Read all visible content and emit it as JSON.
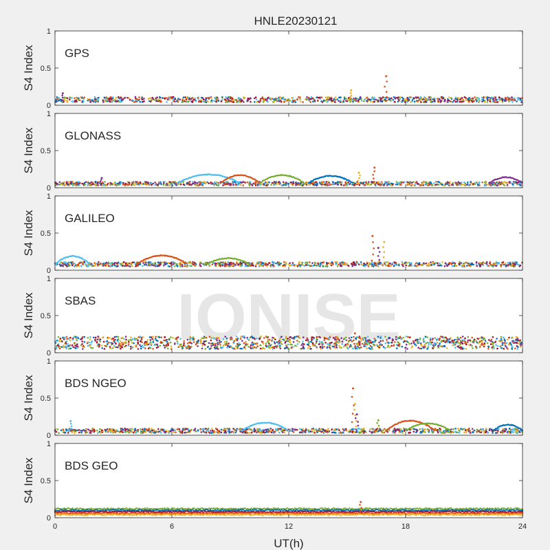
{
  "figure": {
    "title": "HNLE20230121",
    "xlabel": "UT(h)",
    "watermark": "IONISE",
    "background": "#f0f0f0",
    "axes_background": "#ffffff",
    "watermark_color": "#e6e6e6"
  },
  "chart_data": [
    {
      "type": "scatter",
      "name": "GPS",
      "ylabel": "S4 Index",
      "xlim": [
        0,
        24
      ],
      "ylim": [
        0,
        1
      ],
      "xticks": [
        0,
        6,
        12,
        18,
        24
      ],
      "yticks": [
        0,
        0.5,
        1
      ],
      "series_colors": [
        "#0072BD",
        "#D95319",
        "#EDB120",
        "#7E2F8E",
        "#77AC30",
        "#4DBEEE",
        "#A2142F"
      ],
      "baseline_range": [
        0.04,
        0.11
      ],
      "spikes": [
        {
          "x": 17.0,
          "y": 0.39
        },
        {
          "x": 15.2,
          "y": 0.2
        },
        {
          "x": 0.4,
          "y": 0.16
        }
      ],
      "arcs": []
    },
    {
      "type": "scatter",
      "name": "GLONASS",
      "ylabel": "S4 Index",
      "xlim": [
        0,
        24
      ],
      "ylim": [
        0,
        1
      ],
      "xticks": [
        0,
        6,
        12,
        18,
        24
      ],
      "yticks": [
        0,
        0.5,
        1
      ],
      "series_colors": [
        "#0072BD",
        "#D95319",
        "#EDB120",
        "#7E2F8E",
        "#77AC30",
        "#4DBEEE",
        "#A2142F"
      ],
      "baseline_range": [
        0.03,
        0.08
      ],
      "spikes": [
        {
          "x": 16.4,
          "y": 0.27
        },
        {
          "x": 15.6,
          "y": 0.2
        },
        {
          "x": 2.4,
          "y": 0.13
        }
      ],
      "arcs": [
        {
          "x0": 6.3,
          "x1": 9.5,
          "peak": 0.16
        },
        {
          "x0": 8.5,
          "x1": 10.5,
          "peak": 0.15
        },
        {
          "x0": 10.5,
          "x1": 12.8,
          "peak": 0.15
        },
        {
          "x0": 13.0,
          "x1": 15.3,
          "peak": 0.14
        },
        {
          "x0": 22.3,
          "x1": 24.0,
          "peak": 0.12
        }
      ]
    },
    {
      "type": "scatter",
      "name": "GALILEO",
      "ylabel": "S4 Index",
      "xlim": [
        0,
        24
      ],
      "ylim": [
        0,
        1
      ],
      "xticks": [
        0,
        6,
        12,
        18,
        24
      ],
      "yticks": [
        0,
        0.5,
        1
      ],
      "series_colors": [
        "#0072BD",
        "#D95319",
        "#EDB120",
        "#7E2F8E",
        "#77AC30",
        "#4DBEEE",
        "#A2142F"
      ],
      "baseline_range": [
        0.05,
        0.11
      ],
      "spikes": [
        {
          "x": 16.3,
          "y": 0.46
        },
        {
          "x": 16.9,
          "y": 0.38
        },
        {
          "x": 16.6,
          "y": 0.3
        }
      ],
      "arcs": [
        {
          "x0": 0.0,
          "x1": 1.8,
          "peak": 0.17
        },
        {
          "x0": 4.2,
          "x1": 6.8,
          "peak": 0.18
        },
        {
          "x0": 7.8,
          "x1": 10.0,
          "peak": 0.14
        }
      ]
    },
    {
      "type": "scatter",
      "name": "SBAS",
      "ylabel": "S4 Index",
      "xlim": [
        0,
        24
      ],
      "ylim": [
        0,
        1
      ],
      "xticks": [
        0,
        6,
        12,
        18,
        24
      ],
      "yticks": [
        0,
        0.5,
        1
      ],
      "series_colors": [
        "#0072BD",
        "#D95319",
        "#EDB120",
        "#7E2F8E",
        "#77AC30",
        "#4DBEEE",
        "#A2142F"
      ],
      "baseline_range": [
        0.05,
        0.22
      ],
      "spikes": [
        {
          "x": 15.4,
          "y": 0.26
        }
      ],
      "arcs": []
    },
    {
      "type": "scatter",
      "name": "BDS NGEO",
      "ylabel": "S4 Index",
      "xlim": [
        0,
        24
      ],
      "ylim": [
        0,
        1
      ],
      "xticks": [
        0,
        6,
        12,
        18,
        24
      ],
      "yticks": [
        0,
        0.5,
        1
      ],
      "series_colors": [
        "#0072BD",
        "#D95319",
        "#EDB120",
        "#7E2F8E",
        "#77AC30",
        "#4DBEEE",
        "#A2142F"
      ],
      "baseline_range": [
        0.03,
        0.09
      ],
      "spikes": [
        {
          "x": 15.3,
          "y": 0.63
        },
        {
          "x": 15.4,
          "y": 0.42
        },
        {
          "x": 15.5,
          "y": 0.28
        },
        {
          "x": 16.6,
          "y": 0.2
        },
        {
          "x": 0.8,
          "y": 0.19
        }
      ],
      "arcs": [
        {
          "x0": 9.6,
          "x1": 12.0,
          "peak": 0.15
        },
        {
          "x0": 17.0,
          "x1": 19.5,
          "peak": 0.18
        },
        {
          "x0": 18.0,
          "x1": 20.3,
          "peak": 0.14
        },
        {
          "x0": 22.5,
          "x1": 24.0,
          "peak": 0.12
        }
      ]
    },
    {
      "type": "scatter",
      "name": "BDS GEO",
      "ylabel": "S4 Index",
      "xlim": [
        0,
        24
      ],
      "ylim": [
        0,
        1
      ],
      "xticks": [
        0,
        6,
        12,
        18,
        24
      ],
      "yticks": [
        0,
        0.5,
        1
      ],
      "series_colors": [
        "#0072BD",
        "#D95319",
        "#EDB120",
        "#7E2F8E",
        "#77AC30",
        "#4DBEEE",
        "#A2142F"
      ],
      "geo_levels": [
        {
          "color": "#77AC30",
          "y": 0.12
        },
        {
          "color": "#0072BD",
          "y": 0.1
        },
        {
          "color": "#A2142F",
          "y": 0.08
        },
        {
          "color": "#D95319",
          "y": 0.06
        },
        {
          "color": "#EDB120",
          "y": 0.04
        }
      ],
      "spikes": [
        {
          "x": 15.7,
          "y": 0.21
        }
      ],
      "arcs": []
    }
  ]
}
